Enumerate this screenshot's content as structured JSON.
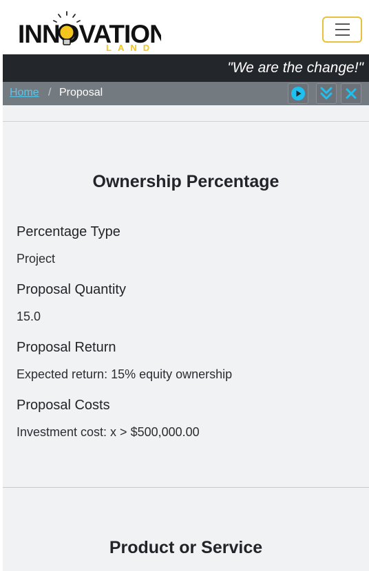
{
  "header": {
    "logo_text": "INNOVATION",
    "logo_subtext": "LAND",
    "menu_toggle_label": "Toggle navigation"
  },
  "slogan": "\"We are the change!\"",
  "breadcrumb": {
    "home": "Home",
    "separator": "/",
    "current": "Proposal"
  },
  "controls": {
    "play_icon": "play-circle-icon",
    "expand_icon": "double-chevron-down-icon",
    "close_icon": "close-icon"
  },
  "ownership": {
    "title": "Ownership Percentage",
    "fields": [
      {
        "label": "Percentage Type",
        "value": "Project"
      },
      {
        "label": "Proposal Quantity",
        "value": "15.0"
      },
      {
        "label": "Proposal Return",
        "value": "Expected return: 15% equity ownership"
      },
      {
        "label": "Proposal Costs",
        "value": "Investment cost: x > $500,000.00"
      }
    ]
  },
  "product": {
    "title": "Product or Service"
  },
  "colors": {
    "accent_yellow": "#e8c13a",
    "dark_bar": "#23262b",
    "breadcrumb_bar": "#737a80",
    "link_blue": "#58c7ee",
    "control_icon": "#1ec0f0",
    "page_bg": "#f1f2f4"
  }
}
